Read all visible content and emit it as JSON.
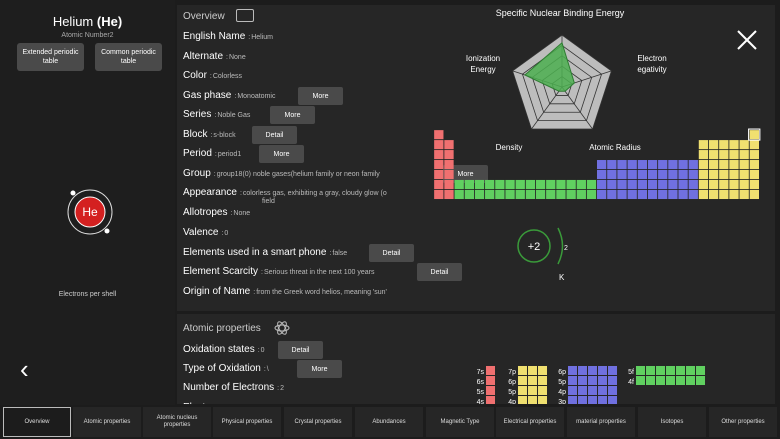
{
  "element": {
    "name": "Helium",
    "symbol": "(He)",
    "symbol_short": "He",
    "atomic_number_label": "Atomic Number2",
    "electrons_per_shell_label": "Electrons per shell"
  },
  "left_buttons": {
    "extended": "Extended periodic table",
    "common": "Common periodic table"
  },
  "overview": {
    "title": "Overview",
    "rows": [
      {
        "label": "English Name",
        "value": "Helium"
      },
      {
        "label": "Alternate",
        "value": "None"
      },
      {
        "label": "Color",
        "value": "Colorless"
      },
      {
        "label": "Gas phase",
        "value": "Monoatomic",
        "button": "More"
      },
      {
        "label": "Series",
        "value": "Noble Gas",
        "button": "More"
      },
      {
        "label": "Block",
        "value": "s-block",
        "button": "Detail"
      },
      {
        "label": "Period",
        "value": "period1",
        "button": "More"
      },
      {
        "label": "Group",
        "value": "group18(0)   noble gases(helium family or neon family",
        "button": "More"
      },
      {
        "label": "Appearance",
        "value": "colorless gas, exhibiting a gray, cloudy glow (o",
        "extra": "field"
      },
      {
        "label": "Allotropes",
        "value": "None"
      },
      {
        "label": "Valence",
        "value": "0"
      },
      {
        "label": "Elements used in a smart phone",
        "value": "false",
        "button": "Detail"
      },
      {
        "label": "Element Scarcity",
        "value": "Serious threat in the next 100 years",
        "button": "Detail"
      },
      {
        "label": "Origin of Name",
        "value": "from the Greek word helios, meaning 'sun'"
      }
    ]
  },
  "radar": {
    "title": "Specific Nuclear Binding Energy",
    "axes": [
      "Specific Nuclear Binding Energy",
      "Electron egativity",
      "Atomic Radius",
      "Density",
      "Ionization Energy"
    ],
    "label_electron": "Electron egativity",
    "label_ionization": "Ionization Energy",
    "label_density": "Density",
    "label_radius": "Atomic Radius",
    "values": [
      0.85,
      0.25,
      0.1,
      0.1,
      0.75
    ],
    "fill_color": "#4caf50"
  },
  "shell": {
    "charge": "+2",
    "count": "2",
    "shell_name": "K"
  },
  "atomic_properties": {
    "title": "Atomic properties",
    "rows": [
      {
        "label": "Oxidation states",
        "value": "0",
        "button": "Detail"
      },
      {
        "label": "Type of Oxidation",
        "value": "\\",
        "button": "More"
      },
      {
        "label": "Number of Electrons",
        "value": "2"
      },
      {
        "label": "Electron",
        "value": ""
      }
    ]
  },
  "orbitals": {
    "s": [
      "7s",
      "6s",
      "5s",
      "4s"
    ],
    "p": [
      "7p",
      "6p",
      "5p",
      "4p"
    ],
    "d": [
      "6p",
      "5p",
      "4p",
      "3p"
    ],
    "f": [
      "5f",
      "4f"
    ]
  },
  "colors": {
    "s_block": "#f07070",
    "p_block": "#f0e070",
    "d_block": "#7070e0",
    "f_block": "#60d060"
  },
  "tabs": [
    "Overview",
    "Atomic properties",
    "Atomic nucleus properties",
    "Physical properties",
    "Crystal properties",
    "Abundances",
    "Magnetic Type",
    "Electrical properties",
    "material properties",
    "Isotopes",
    "Other properties"
  ]
}
